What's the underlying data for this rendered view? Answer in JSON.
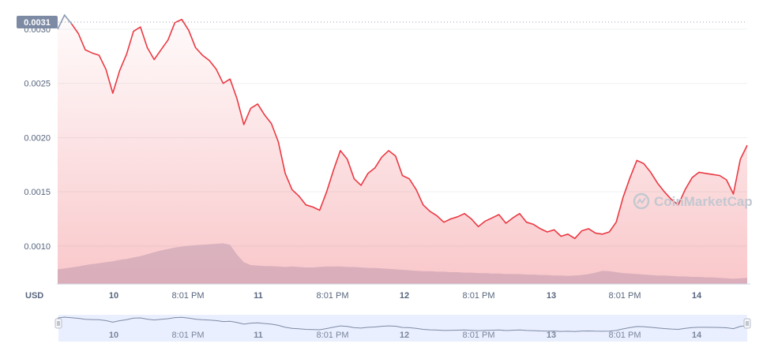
{
  "chart_data": {
    "type": "line",
    "title": "",
    "currency_label": "USD",
    "y_axis": {
      "range": [
        0.00065,
        0.00324
      ],
      "ticks": [
        "0.0010",
        "0.0015",
        "0.0020",
        "0.0025",
        "0.0030"
      ]
    },
    "x_axis": {
      "ticks": [
        "10",
        "8:01 PM",
        "11",
        "8:01 PM",
        "12",
        "8:01 PM",
        "13",
        "8:01 PM",
        "14"
      ]
    },
    "max_price_label": "0.0031",
    "watermark": "CoinMarketCap",
    "grid": "horizontal",
    "line_color": "#ea3943",
    "series": [
      {
        "values": [
          0.003,
          0.00313,
          0.00305,
          0.00296,
          0.00281,
          0.00278,
          0.00276,
          0.00263,
          0.00241,
          0.00262,
          0.00277,
          0.00298,
          0.00302,
          0.00283,
          0.00272,
          0.00281,
          0.0029,
          0.00306,
          0.00309,
          0.00299,
          0.00283,
          0.00276,
          0.00271,
          0.00263,
          0.0025,
          0.00254,
          0.00236,
          0.00212,
          0.00227,
          0.00231,
          0.00221,
          0.00213,
          0.00196,
          0.00167,
          0.00152,
          0.00146,
          0.00138,
          0.00136,
          0.00133,
          0.0015,
          0.0017,
          0.00188,
          0.0018,
          0.00162,
          0.00156,
          0.00167,
          0.00172,
          0.00182,
          0.00188,
          0.00183,
          0.00165,
          0.00162,
          0.00152,
          0.00138,
          0.00132,
          0.00128,
          0.00122,
          0.00125,
          0.00127,
          0.0013,
          0.00125,
          0.00118,
          0.00123,
          0.00126,
          0.00129,
          0.00121,
          0.00126,
          0.0013,
          0.00122,
          0.0012,
          0.00116,
          0.00113,
          0.00115,
          0.00109,
          0.00111,
          0.00107,
          0.00114,
          0.00116,
          0.00112,
          0.00111,
          0.00113,
          0.00122,
          0.00145,
          0.00163,
          0.00179,
          0.00176,
          0.00168,
          0.00158,
          0.0015,
          0.00143,
          0.00138,
          0.00152,
          0.00163,
          0.00168,
          0.00167,
          0.00166,
          0.00165,
          0.00161,
          0.00148,
          0.0018,
          0.00193
        ]
      }
    ],
    "volume": {
      "values": [
        0.31,
        0.33,
        0.35,
        0.37,
        0.4,
        0.42,
        0.44,
        0.46,
        0.48,
        0.51,
        0.53,
        0.56,
        0.59,
        0.63,
        0.67,
        0.71,
        0.74,
        0.77,
        0.79,
        0.81,
        0.82,
        0.83,
        0.84,
        0.85,
        0.86,
        0.83,
        0.62,
        0.46,
        0.4,
        0.39,
        0.38,
        0.38,
        0.37,
        0.36,
        0.37,
        0.36,
        0.35,
        0.35,
        0.36,
        0.37,
        0.37,
        0.37,
        0.36,
        0.36,
        0.35,
        0.34,
        0.34,
        0.33,
        0.32,
        0.31,
        0.3,
        0.29,
        0.28,
        0.27,
        0.27,
        0.26,
        0.26,
        0.25,
        0.25,
        0.24,
        0.24,
        0.23,
        0.23,
        0.22,
        0.22,
        0.21,
        0.21,
        0.21,
        0.2,
        0.2,
        0.19,
        0.19,
        0.18,
        0.18,
        0.17,
        0.18,
        0.19,
        0.21,
        0.24,
        0.28,
        0.27,
        0.25,
        0.23,
        0.22,
        0.21,
        0.2,
        0.19,
        0.18,
        0.18,
        0.17,
        0.16,
        0.16,
        0.15,
        0.15,
        0.14,
        0.14,
        0.13,
        0.12,
        0.11,
        0.12,
        0.13
      ]
    }
  }
}
